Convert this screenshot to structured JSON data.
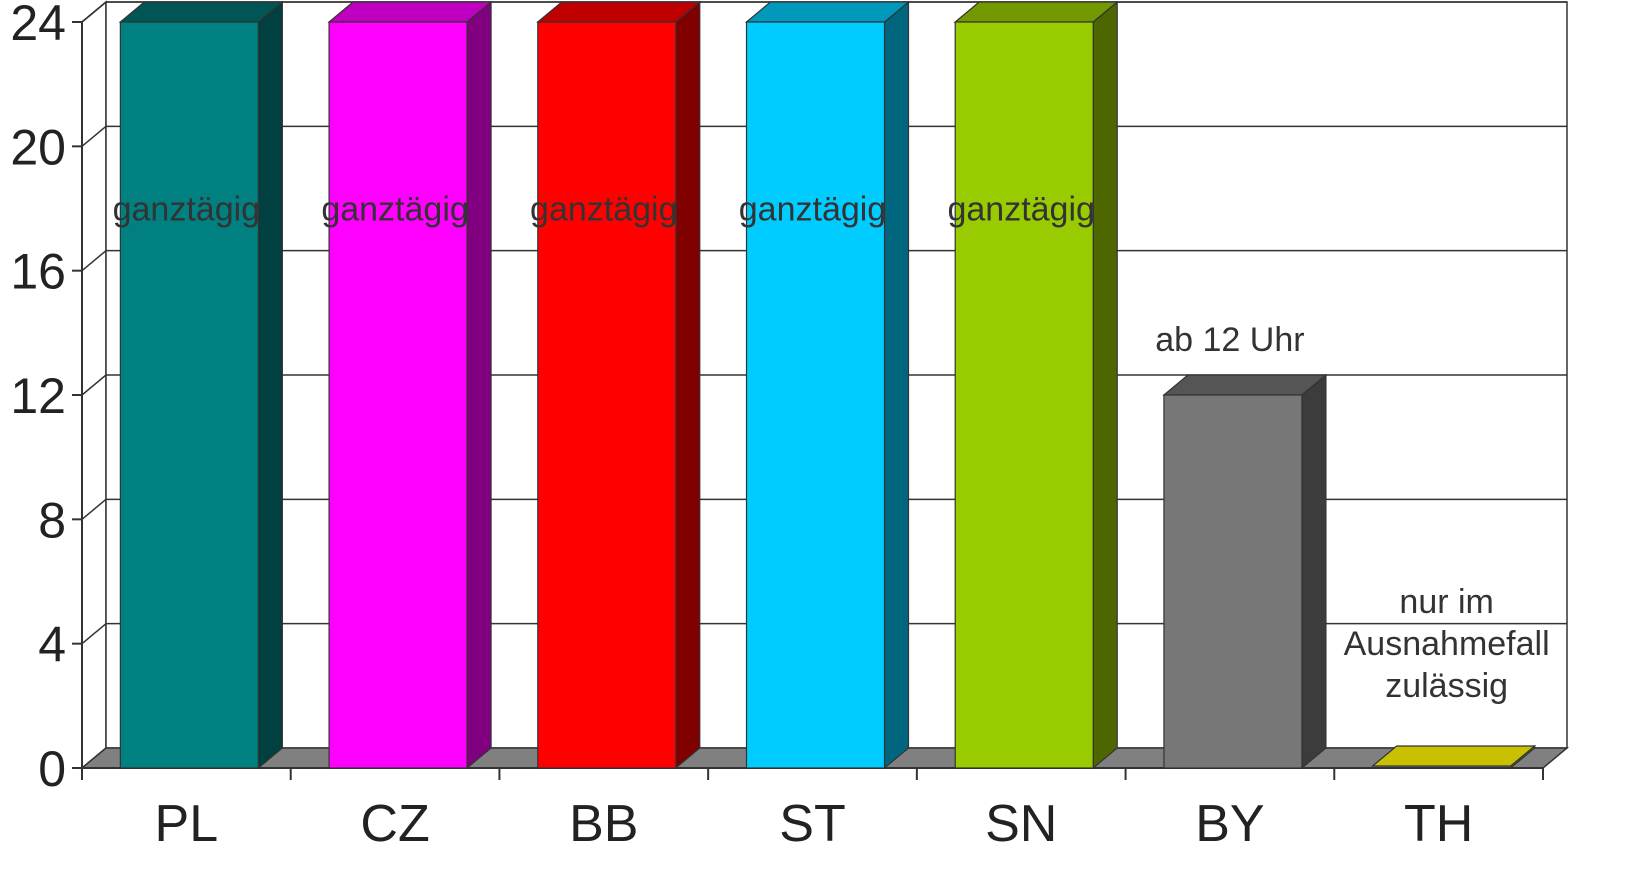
{
  "chart_data": {
    "type": "bar",
    "title": "",
    "xlabel": "",
    "ylabel": "",
    "ylim": [
      0,
      24
    ],
    "yticks": [
      0,
      4,
      8,
      12,
      16,
      20,
      24
    ],
    "grid": true,
    "three_d": true,
    "categories": [
      "PL",
      "CZ",
      "BB",
      "ST",
      "SN",
      "BY",
      "TH"
    ],
    "values": [
      24,
      24,
      24,
      24,
      24,
      12,
      0
    ],
    "colors": [
      "#008080",
      "#FF00FF",
      "#FF0000",
      "#00CCFF",
      "#99CC00",
      "#777777",
      "#C8C000"
    ],
    "side_colors": [
      "#004040",
      "#800080",
      "#800000",
      "#006680",
      "#4D6600",
      "#3C3C3C",
      "#808000"
    ],
    "top_colors": [
      "#005555",
      "#C000C0",
      "#C00000",
      "#0099BB",
      "#739900",
      "#555555",
      "#C8C000"
    ],
    "floor_color": "#808080",
    "annotations": [
      [
        "ganztägig"
      ],
      [
        "ganztägig"
      ],
      [
        "ganztägig"
      ],
      [
        "ganztägig"
      ],
      [
        "ganztägig"
      ],
      [
        "ab 12 Uhr"
      ],
      [
        "nur im",
        "Ausnahmefall",
        "zulässig"
      ]
    ]
  }
}
